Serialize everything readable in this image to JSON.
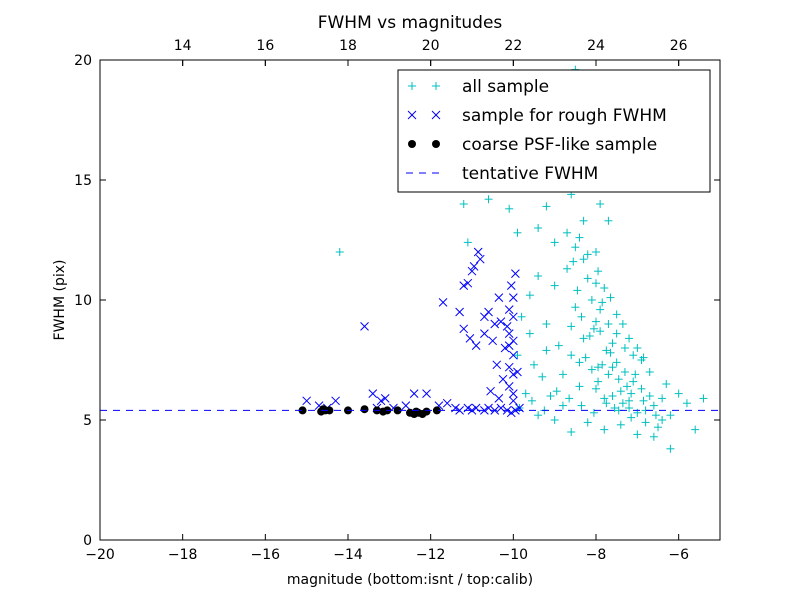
{
  "chart_data": {
    "type": "scatter",
    "title": "FWHM vs magnitudes",
    "xlabel": "magnitude (bottom:isnt / top:calib)",
    "ylabel": "FWHM (pix)",
    "xlim": [
      -20,
      -5
    ],
    "ylim": [
      0,
      20
    ],
    "xticks": [
      -20,
      -18,
      -16,
      -14,
      -12,
      -10,
      -8,
      -6
    ],
    "xtick_labels": [
      "−20",
      "−18",
      "−16",
      "−14",
      "−12",
      "−10",
      "−8",
      "−6"
    ],
    "yticks": [
      0,
      5,
      10,
      15,
      20
    ],
    "ytick_labels": [
      "0",
      "5",
      "10",
      "15",
      "20"
    ],
    "top_xlim": [
      12.0,
      27.0
    ],
    "top_xticks": [
      14,
      16,
      18,
      20,
      22,
      24,
      26
    ],
    "top_xtick_labels": [
      "14",
      "16",
      "18",
      "20",
      "22",
      "24",
      "26"
    ],
    "grid": false,
    "legend_position": "top-right",
    "colors": {
      "all_sample": "#00bfbf",
      "rough_sample": "#0000ff",
      "psf_sample": "#000000",
      "tentative": "#0000ff"
    },
    "tentative_fwhm": 5.4,
    "series": [
      {
        "name": "all sample",
        "marker": "plus",
        "color": "#00bfbf",
        "points": [
          [
            -14.2,
            12.0
          ],
          [
            -11.2,
            14.0
          ],
          [
            -11.1,
            12.4
          ],
          [
            -10.9,
            16.8
          ],
          [
            -10.6,
            14.2
          ],
          [
            -10.3,
            18.6
          ],
          [
            -10.1,
            13.8
          ],
          [
            -9.9,
            12.8
          ],
          [
            -9.5,
            17.5
          ],
          [
            -9.3,
            15.5
          ],
          [
            -9.2,
            13.9
          ],
          [
            -9.0,
            12.4
          ],
          [
            -8.8,
            16.1
          ],
          [
            -8.6,
            14.4
          ],
          [
            -8.5,
            19.6
          ],
          [
            -8.3,
            13.3
          ],
          [
            -8.2,
            18.2
          ],
          [
            -8.0,
            12.0
          ],
          [
            -7.9,
            14.0
          ],
          [
            -7.7,
            13.3
          ],
          [
            -10.0,
            14.9
          ],
          [
            -9.7,
            16.0
          ],
          [
            -9.4,
            13.0
          ],
          [
            -8.9,
            17.8
          ],
          [
            -8.4,
            15.9
          ],
          [
            -8.7,
            19.2
          ],
          [
            -9.8,
            9.3
          ],
          [
            -9.6,
            10.2
          ],
          [
            -9.5,
            7.3
          ],
          [
            -9.4,
            11.0
          ],
          [
            -9.3,
            6.8
          ],
          [
            -9.2,
            9.0
          ],
          [
            -9.1,
            6.0
          ],
          [
            -9.0,
            10.6
          ],
          [
            -8.9,
            8.1
          ],
          [
            -8.8,
            5.6
          ],
          [
            -8.7,
            11.3
          ],
          [
            -8.6,
            7.7
          ],
          [
            -8.5,
            9.7
          ],
          [
            -8.4,
            6.4
          ],
          [
            -8.3,
            8.4
          ],
          [
            -8.2,
            10.9
          ],
          [
            -8.1,
            7.1
          ],
          [
            -8.0,
            9.1
          ],
          [
            -7.95,
            6.6
          ],
          [
            -7.9,
            8.7
          ],
          [
            -7.8,
            5.9
          ],
          [
            -7.75,
            7.9
          ],
          [
            -7.7,
            6.9
          ],
          [
            -7.6,
            8.2
          ],
          [
            -7.55,
            5.5
          ],
          [
            -7.5,
            7.4
          ],
          [
            -7.4,
            6.2
          ],
          [
            -7.3,
            7.0
          ],
          [
            -7.2,
            5.8
          ],
          [
            -7.1,
            6.6
          ],
          [
            -7.0,
            5.3
          ],
          [
            -6.9,
            6.3
          ],
          [
            -6.8,
            4.9
          ],
          [
            -6.7,
            6.0
          ],
          [
            -6.6,
            5.6
          ],
          [
            -6.5,
            4.7
          ],
          [
            -6.4,
            5.9
          ],
          [
            -6.3,
            6.5
          ],
          [
            -6.2,
            5.2
          ],
          [
            -6.0,
            6.1
          ],
          [
            -5.8,
            5.7
          ],
          [
            -5.6,
            4.6
          ],
          [
            -5.4,
            5.9
          ],
          [
            -9.9,
            7.7
          ],
          [
            -9.7,
            6.1
          ],
          [
            -9.6,
            8.6
          ],
          [
            -9.4,
            5.2
          ],
          [
            -9.2,
            7.9
          ],
          [
            -9.0,
            5.0
          ],
          [
            -8.8,
            6.9
          ],
          [
            -8.6,
            4.5
          ],
          [
            -8.4,
            7.4
          ],
          [
            -8.2,
            4.9
          ],
          [
            -8.0,
            6.3
          ],
          [
            -7.8,
            4.6
          ],
          [
            -7.6,
            6.0
          ],
          [
            -7.4,
            4.8
          ],
          [
            -7.2,
            5.5
          ],
          [
            -7.0,
            4.4
          ],
          [
            -6.8,
            5.4
          ],
          [
            -6.6,
            4.3
          ],
          [
            -6.4,
            5.0
          ],
          [
            -6.2,
            3.8
          ],
          [
            -8.1,
            10.0
          ],
          [
            -7.9,
            9.6
          ],
          [
            -8.3,
            11.7
          ],
          [
            -8.5,
            12.2
          ],
          [
            -8.0,
            10.7
          ],
          [
            -7.7,
            9.0
          ],
          [
            -7.5,
            8.6
          ],
          [
            -7.3,
            8.0
          ],
          [
            -7.1,
            7.7
          ],
          [
            -6.9,
            7.5
          ],
          [
            -6.7,
            7.0
          ],
          [
            -8.6,
            8.9
          ],
          [
            -8.35,
            9.3
          ],
          [
            -8.15,
            8.5
          ],
          [
            -7.85,
            7.3
          ],
          [
            -7.65,
            7.8
          ],
          [
            -7.45,
            6.7
          ],
          [
            -7.25,
            6.4
          ],
          [
            -7.05,
            6.9
          ],
          [
            -8.45,
            10.4
          ],
          [
            -8.25,
            7.6
          ],
          [
            -8.05,
            8.8
          ],
          [
            -7.95,
            7.2
          ],
          [
            -7.85,
            9.9
          ],
          [
            -7.6,
            7.2
          ],
          [
            -7.35,
            5.7
          ],
          [
            -7.15,
            6.1
          ],
          [
            -9.85,
            5.5
          ],
          [
            -9.55,
            5.8
          ],
          [
            -9.25,
            5.4
          ],
          [
            -8.95,
            6.2
          ],
          [
            -8.65,
            5.9
          ],
          [
            -8.35,
            5.6
          ],
          [
            -8.05,
            5.3
          ],
          [
            -7.75,
            5.7
          ],
          [
            -7.45,
            5.4
          ],
          [
            -7.15,
            5.1
          ],
          [
            -6.85,
            5.8
          ],
          [
            -6.55,
            5.2
          ],
          [
            -8.7,
            12.8
          ],
          [
            -8.55,
            11.6
          ],
          [
            -8.4,
            12.6
          ],
          [
            -8.2,
            11.9
          ],
          [
            -7.95,
            11.2
          ],
          [
            -7.8,
            10.5
          ],
          [
            -7.65,
            10.1
          ],
          [
            -7.5,
            9.4
          ],
          [
            -7.35,
            9.0
          ],
          [
            -7.2,
            8.4
          ],
          [
            -7.0,
            8.0
          ],
          [
            -6.85,
            7.6
          ]
        ]
      },
      {
        "name": "sample for rough FWHM",
        "marker": "x",
        "color": "#0000ff",
        "points": [
          [
            -15.0,
            5.8
          ],
          [
            -14.7,
            5.6
          ],
          [
            -14.5,
            5.5
          ],
          [
            -14.3,
            5.8
          ],
          [
            -13.6,
            8.9
          ],
          [
            -13.4,
            6.1
          ],
          [
            -13.3,
            5.5
          ],
          [
            -13.2,
            5.8
          ],
          [
            -13.1,
            5.9
          ],
          [
            -12.9,
            5.5
          ],
          [
            -12.6,
            5.6
          ],
          [
            -12.4,
            6.1
          ],
          [
            -12.1,
            6.1
          ],
          [
            -11.8,
            5.6
          ],
          [
            -11.7,
            9.9
          ],
          [
            -11.6,
            5.7
          ],
          [
            -11.4,
            5.5
          ],
          [
            -11.3,
            5.4
          ],
          [
            -11.1,
            5.5
          ],
          [
            -11.0,
            5.4
          ],
          [
            -10.9,
            5.5
          ],
          [
            -10.7,
            5.4
          ],
          [
            -10.6,
            5.5
          ],
          [
            -10.45,
            5.4
          ],
          [
            -10.3,
            5.5
          ],
          [
            -10.15,
            5.4
          ],
          [
            -10.05,
            5.3
          ],
          [
            -9.95,
            5.4
          ],
          [
            -9.85,
            5.5
          ],
          [
            -10.0,
            5.8
          ],
          [
            -10.0,
            6.1
          ],
          [
            -10.1,
            6.4
          ],
          [
            -10.0,
            6.9
          ],
          [
            -10.1,
            7.2
          ],
          [
            -10.0,
            7.7
          ],
          [
            -10.1,
            8.1
          ],
          [
            -10.0,
            8.3
          ],
          [
            -10.1,
            8.6
          ],
          [
            -10.0,
            9.3
          ],
          [
            -10.1,
            9.6
          ],
          [
            -10.0,
            10.1
          ],
          [
            -10.05,
            10.6
          ],
          [
            -9.95,
            11.1
          ],
          [
            -10.15,
            8.9
          ],
          [
            -9.9,
            7.0
          ],
          [
            -10.3,
            9.1
          ],
          [
            -10.35,
            10.1
          ],
          [
            -10.45,
            9.0
          ],
          [
            -10.5,
            8.3
          ],
          [
            -10.6,
            9.5
          ],
          [
            -10.7,
            8.6
          ],
          [
            -10.8,
            11.7
          ],
          [
            -10.85,
            12.0
          ],
          [
            -10.95,
            11.4
          ],
          [
            -11.0,
            11.2
          ],
          [
            -11.1,
            10.7
          ],
          [
            -11.2,
            10.6
          ],
          [
            -10.7,
            9.3
          ],
          [
            -10.9,
            8.1
          ],
          [
            -11.2,
            8.8
          ],
          [
            -11.3,
            9.5
          ],
          [
            -10.4,
            7.3
          ],
          [
            -10.25,
            6.7
          ],
          [
            -10.35,
            5.9
          ],
          [
            -10.55,
            6.2
          ],
          [
            -10.2,
            8.0
          ],
          [
            -11.05,
            8.4
          ]
        ]
      },
      {
        "name": "coarse PSF-like sample",
        "marker": "dot",
        "color": "#000000",
        "points": [
          [
            -15.1,
            5.4
          ],
          [
            -14.6,
            5.45
          ],
          [
            -14.55,
            5.4
          ],
          [
            -14.45,
            5.4
          ],
          [
            -14.0,
            5.4
          ],
          [
            -13.6,
            5.45
          ],
          [
            -13.3,
            5.4
          ],
          [
            -13.15,
            5.35
          ],
          [
            -13.05,
            5.4
          ],
          [
            -12.8,
            5.4
          ],
          [
            -12.5,
            5.3
          ],
          [
            -12.4,
            5.25
          ],
          [
            -12.3,
            5.3
          ],
          [
            -12.2,
            5.25
          ],
          [
            -12.1,
            5.35
          ],
          [
            -11.85,
            5.4
          ],
          [
            -12.35,
            5.35
          ],
          [
            -14.65,
            5.35
          ]
        ]
      },
      {
        "name": "tentative FWHM",
        "marker": "dashed-line",
        "color": "#0000ff",
        "y": 5.4
      }
    ]
  }
}
